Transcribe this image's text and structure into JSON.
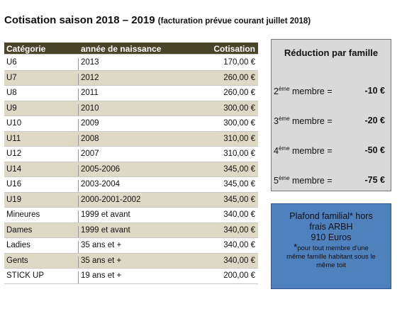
{
  "header": {
    "title": "Cotisation saison 2018 – 2019",
    "subtitle": "(facturation prévue courant juillet 2018)"
  },
  "table": {
    "columns": [
      "Catégorie",
      "année de naissance",
      "Cotisation"
    ],
    "rows": [
      [
        "U6",
        "2013",
        "170,00 €"
      ],
      [
        "U7",
        "2012",
        "260,00 €"
      ],
      [
        "U8",
        "2011",
        "260,00 €"
      ],
      [
        "U9",
        "2010",
        "300,00 €"
      ],
      [
        "U10",
        "2009",
        "300,00 €"
      ],
      [
        "U11",
        "2008",
        "310,00 €"
      ],
      [
        "U12",
        "2007",
        "310,00 €"
      ],
      [
        "U14",
        "2005-2006",
        "345,00 €"
      ],
      [
        "U16",
        "2003-2004",
        "345,00 €"
      ],
      [
        "U19",
        "2000-2001-2002",
        "345,00 €"
      ],
      [
        "Mineures",
        "1999 et avant",
        "340,00 €"
      ],
      [
        "Dames",
        "1999 et avant",
        "340,00 €"
      ],
      [
        "Ladies",
        "35 ans et +",
        "340,00 €"
      ],
      [
        "Gents",
        "35 ans et +",
        "340,00 €"
      ],
      [
        "STICK UP",
        "19 ans et +",
        "200,00 €"
      ]
    ]
  },
  "reduction": {
    "title": "Réduction par famille",
    "items": [
      {
        "ordinal": "2",
        "suffix": "ème",
        "label": "membre =",
        "amount": "-10 €"
      },
      {
        "ordinal": "3",
        "suffix": "ème",
        "label": "membre =",
        "amount": "-20 €"
      },
      {
        "ordinal": "4",
        "suffix": "ème",
        "label": "membre =",
        "amount": "-50 €"
      },
      {
        "ordinal": "5",
        "suffix": "ème",
        "label": "membre =",
        "amount": "-75 €"
      }
    ]
  },
  "plafond": {
    "lines": [
      "Plafond familial* hors",
      "frais ARBH",
      "910 Euros"
    ],
    "asterisk": "*",
    "note": [
      "pour tout membre d'une",
      "même famille habitant sous le",
      "même toit"
    ]
  }
}
